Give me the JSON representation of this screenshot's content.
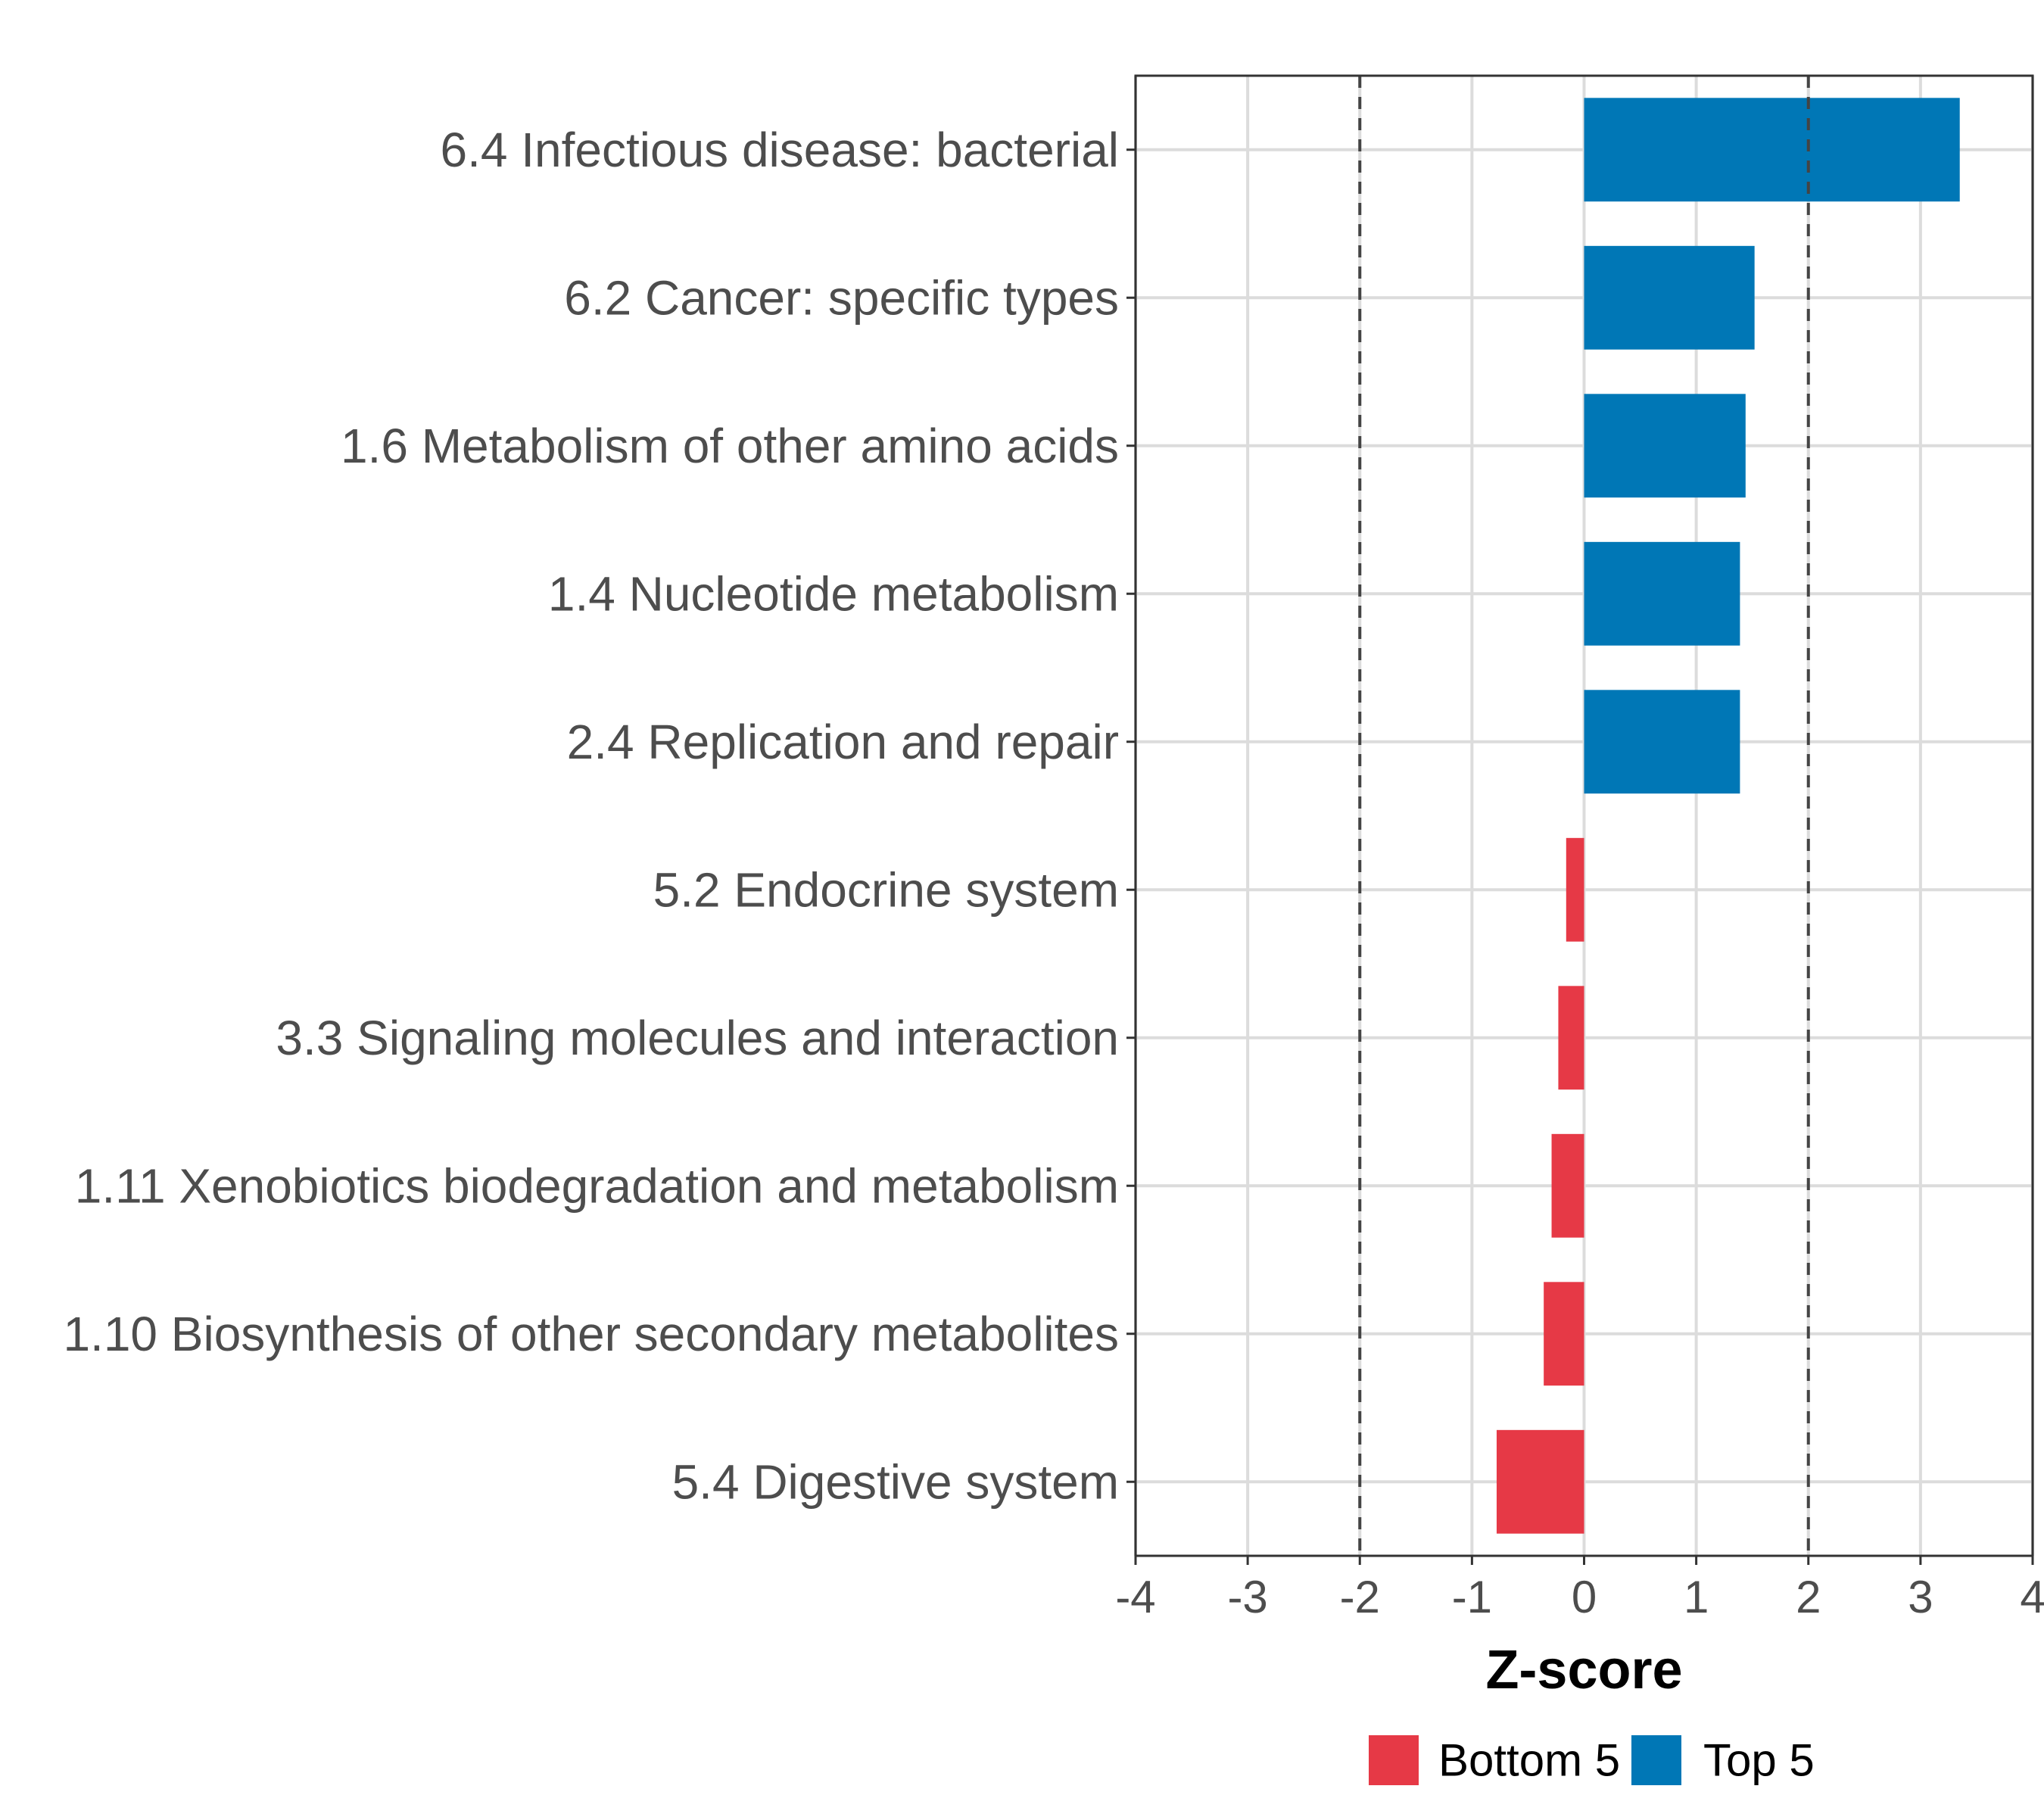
{
  "chart_data": {
    "type": "bar",
    "orientation": "horizontal",
    "categories": [
      "6.4 Infectious disease: bacterial",
      "6.2 Cancer: specific types",
      "1.6 Metabolism of other amino acids",
      "1.4 Nucleotide metabolism",
      "2.4 Replication and repair",
      "5.2 Endocrine system",
      "3.3 Signaling molecules and interaction",
      "1.11 Xenobiotics biodegradation and metabolism",
      "1.10 Biosynthesis of other secondary metabolites",
      "5.4 Digestive system"
    ],
    "values": [
      3.35,
      1.52,
      1.44,
      1.39,
      1.39,
      -0.16,
      -0.23,
      -0.29,
      -0.36,
      -0.78
    ],
    "groups": [
      "Top 5",
      "Top 5",
      "Top 5",
      "Top 5",
      "Top 5",
      "Bottom 5",
      "Bottom 5",
      "Bottom 5",
      "Bottom 5",
      "Bottom 5"
    ],
    "xlabel": "Z-score",
    "ylabel": "",
    "xlim": [
      -4,
      4
    ],
    "xticks": [
      "-4",
      "-3",
      "-2",
      "-1",
      "0",
      "1",
      "2",
      "3",
      "4"
    ],
    "reference_lines": [
      -2,
      2
    ],
    "grid": true,
    "legend": {
      "position": "bottom",
      "entries": [
        {
          "label": "Bottom 5",
          "color": "#e63946"
        },
        {
          "label": "Top 5",
          "color": "#0077b6"
        }
      ]
    }
  }
}
